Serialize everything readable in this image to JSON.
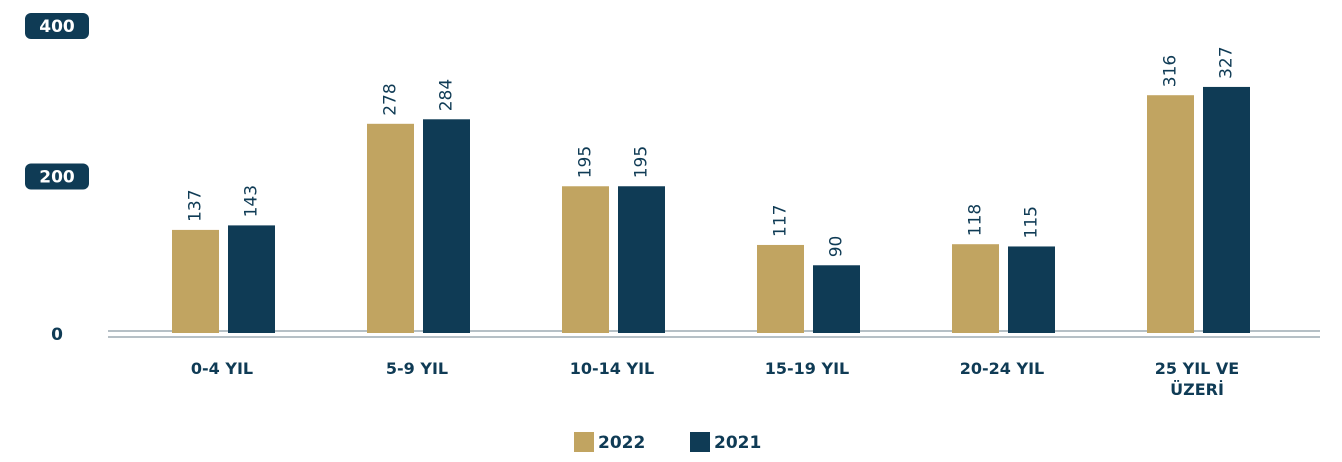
{
  "chart_data": {
    "type": "bar",
    "categories": [
      "0-4 YIL",
      "5-9 YIL",
      "10-14 YIL",
      "15-19 YIL",
      "20-24 YIL",
      "25 YIL VE ÜZERİ"
    ],
    "series": [
      {
        "name": "2022",
        "color": "#c1a461",
        "values": [
          137,
          278,
          195,
          117,
          118,
          316
        ]
      },
      {
        "name": "2021",
        "color": "#0f3b55",
        "values": [
          143,
          284,
          195,
          90,
          115,
          327
        ]
      }
    ],
    "ylim": [
      0,
      400
    ],
    "yticks": [
      0,
      200,
      400
    ],
    "grid": false,
    "legend": "bottom"
  }
}
